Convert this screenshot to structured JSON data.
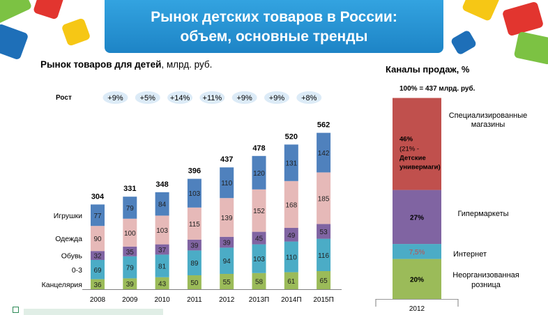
{
  "header": {
    "title_line1": "Рынок детских товаров в России:",
    "title_line2": "объем, основные тренды",
    "accent_color": "#2596d9"
  },
  "left_chart_title": {
    "bold": "Рынок товаров для детей",
    "rest": ", млрд. руб."
  },
  "right_chart_title": "Каналы продаж, %",
  "growth_label": "Рост",
  "chart_data": [
    {
      "type": "bar",
      "stacked": true,
      "title": "Рынок товаров для детей, млрд. руб.",
      "categories": [
        "2008",
        "2009",
        "2010",
        "2011",
        "2012",
        "2013П",
        "2014П",
        "2015П"
      ],
      "series": [
        {
          "name": "Канцелярия",
          "color": "#9bbb59",
          "values": [
            36,
            39,
            43,
            50,
            55,
            58,
            61,
            65
          ]
        },
        {
          "name": "0-3",
          "color": "#4bacc6",
          "values": [
            69,
            79,
            81,
            89,
            94,
            103,
            110,
            116
          ]
        },
        {
          "name": "Обувь",
          "color": "#8064a2",
          "values": [
            32,
            35,
            37,
            39,
            39,
            45,
            49,
            53
          ]
        },
        {
          "name": "Одежда",
          "color": "#e6b9b8",
          "values": [
            90,
            100,
            103,
            115,
            139,
            152,
            168,
            185
          ]
        },
        {
          "name": "Игрушки",
          "color": "#4f81bd",
          "values": [
            77,
            79,
            84,
            103,
            110,
            120,
            131,
            142
          ]
        }
      ],
      "totals": [
        304,
        331,
        348,
        396,
        437,
        478,
        520,
        562
      ],
      "growth": [
        "+9%",
        "+5%",
        "+14%",
        "+11%",
        "+9%",
        "+9%",
        "+8%"
      ],
      "ylim": [
        0,
        600
      ]
    },
    {
      "type": "bar",
      "stacked": true,
      "title": "Каналы продаж, %",
      "subtitle": "100% = 437 млрд. руб.",
      "categories": [
        "2012"
      ],
      "series": [
        {
          "name": "Неорганизованная розница",
          "value": 20,
          "label": "20%",
          "color": "#9bbb59"
        },
        {
          "name": "Интернет",
          "value": 7.5,
          "label": "7,5%",
          "color": "#4bacc6"
        },
        {
          "name": "Гипермаркеты",
          "value": 27,
          "label": "27%",
          "color": "#8064a2"
        },
        {
          "name": "Специализированные магазины",
          "value": 46,
          "label": "46%",
          "sub_label": "(21% - Детские универмаги)",
          "color": "#c0504d"
        }
      ],
      "ylim": [
        0,
        100
      ]
    }
  ]
}
